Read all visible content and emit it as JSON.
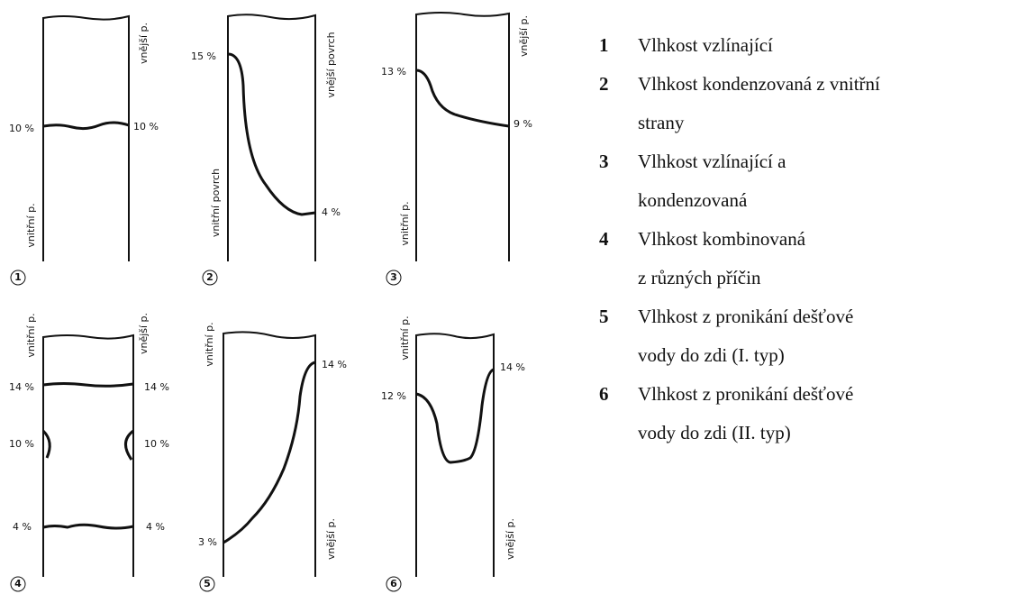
{
  "panels": [
    {
      "number": "1",
      "labels": [
        "vnější p.",
        "10 %",
        "10 %",
        "vnitřní p."
      ]
    },
    {
      "number": "2",
      "labels": [
        "15 %",
        "vnější povrch",
        "vnitřní povrch",
        "4 %"
      ]
    },
    {
      "number": "3",
      "labels": [
        "vnější p.",
        "13 %",
        "9 %",
        "vnitřní p."
      ]
    },
    {
      "number": "4",
      "labels": [
        "vnitřní p.",
        "vnější p.",
        "14 %",
        "14 %",
        "10 %",
        "10 %",
        "4 %",
        "4 %"
      ]
    },
    {
      "number": "5",
      "labels": [
        "vnitřní p.",
        "14 %",
        "3 %",
        "vnější p."
      ]
    },
    {
      "number": "6",
      "labels": [
        "vnitřní p.",
        "12 %",
        "14 %",
        "vnější p."
      ]
    }
  ],
  "legend": [
    {
      "number": "1",
      "lines": [
        "Vlhkost vzlínající"
      ]
    },
    {
      "number": "2",
      "lines": [
        "Vlhkost kondenzovaná z vnitřní",
        "strany"
      ]
    },
    {
      "number": "3",
      "lines": [
        "Vlhkost vzlínající a",
        "kondenzovaná"
      ]
    },
    {
      "number": "4",
      "lines": [
        "Vlhkost kombinovaná",
        "z různých příčin"
      ]
    },
    {
      "number": "5",
      "lines": [
        "Vlhkost z pronikání dešťové",
        "vody do zdi (I. typ)"
      ]
    },
    {
      "number": "6",
      "lines": [
        "Vlhkost z pronikání dešťové",
        "vody do zdi (II. typ)"
      ]
    }
  ]
}
